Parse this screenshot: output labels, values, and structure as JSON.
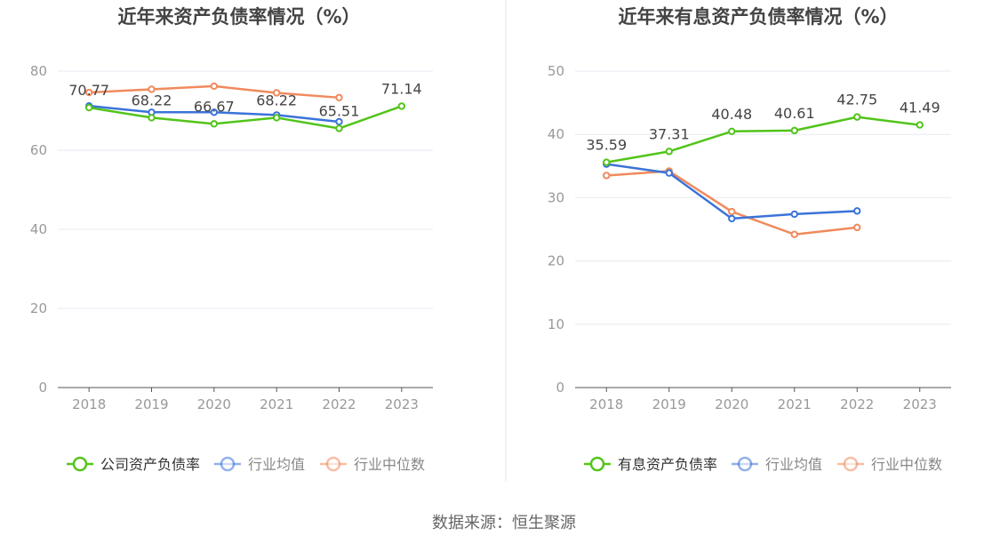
{
  "source_text": "数据来源：恒生聚源",
  "colors": {
    "company": "#52c41a",
    "industry_avg": "#3b73d9",
    "industry_median": "#f08a5d",
    "grid": "#e6e9f0",
    "axis": "#555555",
    "tick_text": "#999999",
    "title_text": "#444444",
    "label_text": "#444444",
    "divider": "#e8e8e8"
  },
  "chart_data": [
    {
      "type": "line",
      "title": "近年来资产负债率情况（%）",
      "categories": [
        "2018",
        "2019",
        "2020",
        "2021",
        "2022",
        "2023"
      ],
      "ylim": [
        0,
        80
      ],
      "yticks": [
        0,
        20,
        40,
        60,
        80
      ],
      "grid": true,
      "legend_position": "bottom",
      "series": [
        {
          "name": "公司资产负债率",
          "color_key": "company",
          "values": [
            70.77,
            68.22,
            66.67,
            68.22,
            65.51,
            71.14
          ],
          "labels": [
            "70.77",
            "68.22",
            "66.67",
            "68.22",
            "65.51",
            "71.14"
          ]
        },
        {
          "name": "行业均值",
          "color_key": "industry_avg",
          "values": [
            71.2,
            69.6,
            69.6,
            68.9,
            67.2,
            null
          ]
        },
        {
          "name": "行业中位数",
          "color_key": "industry_median",
          "values": [
            74.6,
            75.4,
            76.2,
            74.5,
            73.3,
            null
          ]
        }
      ]
    },
    {
      "type": "line",
      "title": "近年来有息资产负债率情况（%）",
      "categories": [
        "2018",
        "2019",
        "2020",
        "2021",
        "2022",
        "2023"
      ],
      "ylim": [
        0,
        50
      ],
      "yticks": [
        0,
        10,
        20,
        30,
        40,
        50
      ],
      "grid": true,
      "legend_position": "bottom",
      "series": [
        {
          "name": "有息资产负债率",
          "color_key": "company",
          "values": [
            35.59,
            37.31,
            40.48,
            40.61,
            42.75,
            41.49
          ],
          "labels": [
            "35.59",
            "37.31",
            "40.48",
            "40.61",
            "42.75",
            "41.49"
          ]
        },
        {
          "name": "行业均值",
          "color_key": "industry_avg",
          "values": [
            35.3,
            33.9,
            26.7,
            27.4,
            27.9,
            null
          ]
        },
        {
          "name": "行业中位数",
          "color_key": "industry_median",
          "values": [
            33.5,
            34.2,
            27.8,
            24.2,
            25.3,
            null
          ]
        }
      ]
    }
  ]
}
